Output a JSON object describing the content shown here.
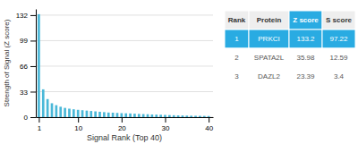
{
  "chart_data": {
    "type": "bar",
    "x": [
      1,
      2,
      3,
      4,
      5,
      6,
      7,
      8,
      9,
      10,
      11,
      12,
      13,
      14,
      15,
      16,
      17,
      18,
      19,
      20,
      21,
      22,
      23,
      24,
      25,
      26,
      27,
      28,
      29,
      30,
      31,
      32,
      33,
      34,
      35,
      36,
      37,
      38,
      39,
      40
    ],
    "values": [
      133.2,
      35.98,
      23.39,
      18,
      15.5,
      13.5,
      12,
      11,
      10.2,
      9.5,
      9.0,
      8.5,
      8.0,
      7.5,
      7.0,
      6.5,
      6.0,
      5.8,
      5.5,
      5.2,
      5.0,
      4.8,
      4.5,
      4.2,
      4.0,
      3.8,
      3.5,
      3.3,
      3.1,
      2.9,
      2.7,
      2.5,
      2.3,
      2.2,
      2.0,
      1.9,
      1.8,
      1.7,
      1.6,
      1.5
    ],
    "color": "#4ab8d8",
    "x_label": "Signal Rank (Top 40)",
    "y_label": "Strength of Signal (Z score)",
    "xlim": [
      0.3,
      41
    ],
    "xticks": [
      1,
      10,
      20,
      30,
      40
    ],
    "ylim": [
      0,
      140
    ],
    "yticks": [
      0,
      33,
      66,
      99,
      132
    ],
    "grid": true,
    "table": {
      "columns": [
        "Rank",
        "Protein",
        "Z score",
        "S score"
      ],
      "rows": [
        [
          "1",
          "PRKCI",
          "133.2",
          "97.22"
        ],
        [
          "2",
          "SPATA2L",
          "35.98",
          "12.59"
        ],
        [
          "3",
          "DAZL2",
          "23.39",
          "3.4"
        ]
      ],
      "color": "#29abe2"
    }
  }
}
